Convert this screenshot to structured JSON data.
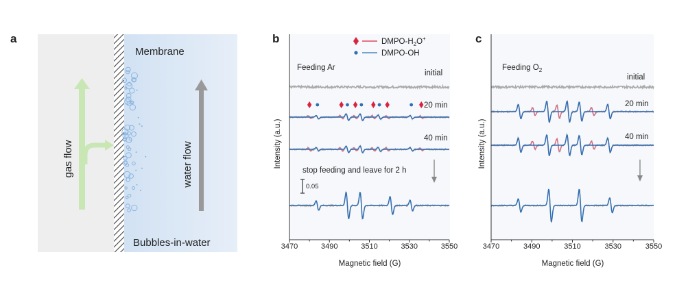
{
  "figure": {
    "panel_a": {
      "letter": "a",
      "membrane_label": "Membrane",
      "gas_flow_label": "gas flow",
      "water_flow_label": "water flow",
      "bubbles_label": "Bubbles-in-water",
      "colors": {
        "gas_side": "#eeeeee",
        "water_side": "#dce8f5",
        "gas_arrow": "#c9e7b5",
        "water_arrow": "#999999",
        "bubble": "#8ab4df"
      }
    },
    "panel_b": {
      "letter": "b",
      "condition": "Feeding Ar",
      "stop_note": "stop feeding and leave for 2 h",
      "scale_bar": "0.05",
      "trace_labels": [
        "initial",
        "20 min",
        "40 min"
      ]
    },
    "panel_c": {
      "letter": "c",
      "condition_main": "Feeding O",
      "condition_sub": "2",
      "trace_labels": [
        "initial",
        "20 min",
        "40 min"
      ]
    },
    "legend": {
      "items": [
        {
          "symbol": "diamond",
          "main": "DMPO-H",
          "sub": "2",
          "rest": "O",
          "sup": "+",
          "color": "#d9243f"
        },
        {
          "symbol": "dot",
          "main": "DMPO-OH",
          "sub": "",
          "rest": "",
          "sup": "",
          "color": "#2c6fb6"
        }
      ]
    },
    "axes": {
      "xlabel": "Magnetic field (G)",
      "ylabel": "Intensity (a.u.)"
    }
  },
  "chart_data": [
    {
      "panel": "b",
      "type": "line",
      "xlim": [
        3470,
        3550
      ],
      "x_ticks": [
        3470,
        3490,
        3510,
        3530,
        3550
      ],
      "series": [
        {
          "name": "DMPO-H2O+",
          "color": "#d9243f",
          "marker_fields": [
            3480,
            3496,
            3503,
            3512,
            3519,
            3536
          ]
        },
        {
          "name": "DMPO-OH",
          "color": "#2c6fb6",
          "marker_fields": [
            3484,
            3499,
            3506,
            3515,
            3531
          ]
        }
      ],
      "traces": [
        {
          "label": "initial",
          "kind": "noise",
          "peaks": []
        },
        {
          "label": "20 min",
          "kind": "mixed",
          "peaks": [
            [
              3480,
              0.4,
              "h"
            ],
            [
              3484,
              0.5,
              "o"
            ],
            [
              3496,
              0.45,
              "h"
            ],
            [
              3499,
              1.0,
              "o"
            ],
            [
              3503,
              0.45,
              "h"
            ],
            [
              3506,
              1.0,
              "o"
            ],
            [
              3512,
              0.45,
              "h"
            ],
            [
              3515,
              0.6,
              "o"
            ],
            [
              3519,
              0.45,
              "h"
            ],
            [
              3531,
              0.5,
              "o"
            ],
            [
              3536,
              0.35,
              "h"
            ]
          ]
        },
        {
          "label": "40 min",
          "kind": "mixed",
          "peaks": [
            [
              3480,
              0.4,
              "h"
            ],
            [
              3484,
              0.5,
              "o"
            ],
            [
              3496,
              0.45,
              "h"
            ],
            [
              3499,
              1.0,
              "o"
            ],
            [
              3503,
              0.45,
              "h"
            ],
            [
              3506,
              1.0,
              "o"
            ],
            [
              3512,
              0.45,
              "h"
            ],
            [
              3515,
              0.6,
              "o"
            ],
            [
              3519,
              0.45,
              "h"
            ],
            [
              3531,
              0.5,
              "o"
            ],
            [
              3536,
              0.35,
              "h"
            ]
          ]
        },
        {
          "label": "stop feeding and leave for 2 h",
          "kind": "oh",
          "peaks": [
            [
              3484,
              0.8,
              "o"
            ],
            [
              3499,
              2.2,
              "o"
            ],
            [
              3506,
              2.2,
              "o"
            ],
            [
              3521,
              1.5,
              "o"
            ],
            [
              3531,
              0.9,
              "o"
            ]
          ]
        }
      ]
    },
    {
      "panel": "c",
      "type": "line",
      "xlim": [
        3470,
        3550
      ],
      "x_ticks": [
        3470,
        3490,
        3510,
        3530,
        3550
      ],
      "traces": [
        {
          "label": "initial",
          "kind": "noise",
          "peaks": []
        },
        {
          "label": "20 min",
          "kind": "mixed",
          "peaks": [
            [
              3484,
              0.9,
              "o"
            ],
            [
              3491,
              0.5,
              "h"
            ],
            [
              3498,
              1.3,
              "o"
            ],
            [
              3503,
              0.8,
              "h"
            ],
            [
              3508,
              1.3,
              "o"
            ],
            [
              3514,
              1.2,
              "o"
            ],
            [
              3520,
              0.5,
              "h"
            ],
            [
              3528,
              0.9,
              "o"
            ]
          ]
        },
        {
          "label": "40 min",
          "kind": "mixed",
          "peaks": [
            [
              3484,
              0.9,
              "o"
            ],
            [
              3491,
              0.5,
              "h"
            ],
            [
              3498,
              1.3,
              "o"
            ],
            [
              3503,
              0.8,
              "h"
            ],
            [
              3508,
              1.3,
              "o"
            ],
            [
              3514,
              1.2,
              "o"
            ],
            [
              3520,
              0.5,
              "h"
            ],
            [
              3528,
              0.9,
              "o"
            ]
          ]
        },
        {
          "label": "",
          "kind": "oh",
          "peaks": [
            [
              3484,
              0.9,
              "o"
            ],
            [
              3499,
              2.2,
              "o"
            ],
            [
              3514,
              2.2,
              "o"
            ],
            [
              3529,
              1.0,
              "o"
            ]
          ]
        }
      ]
    }
  ]
}
